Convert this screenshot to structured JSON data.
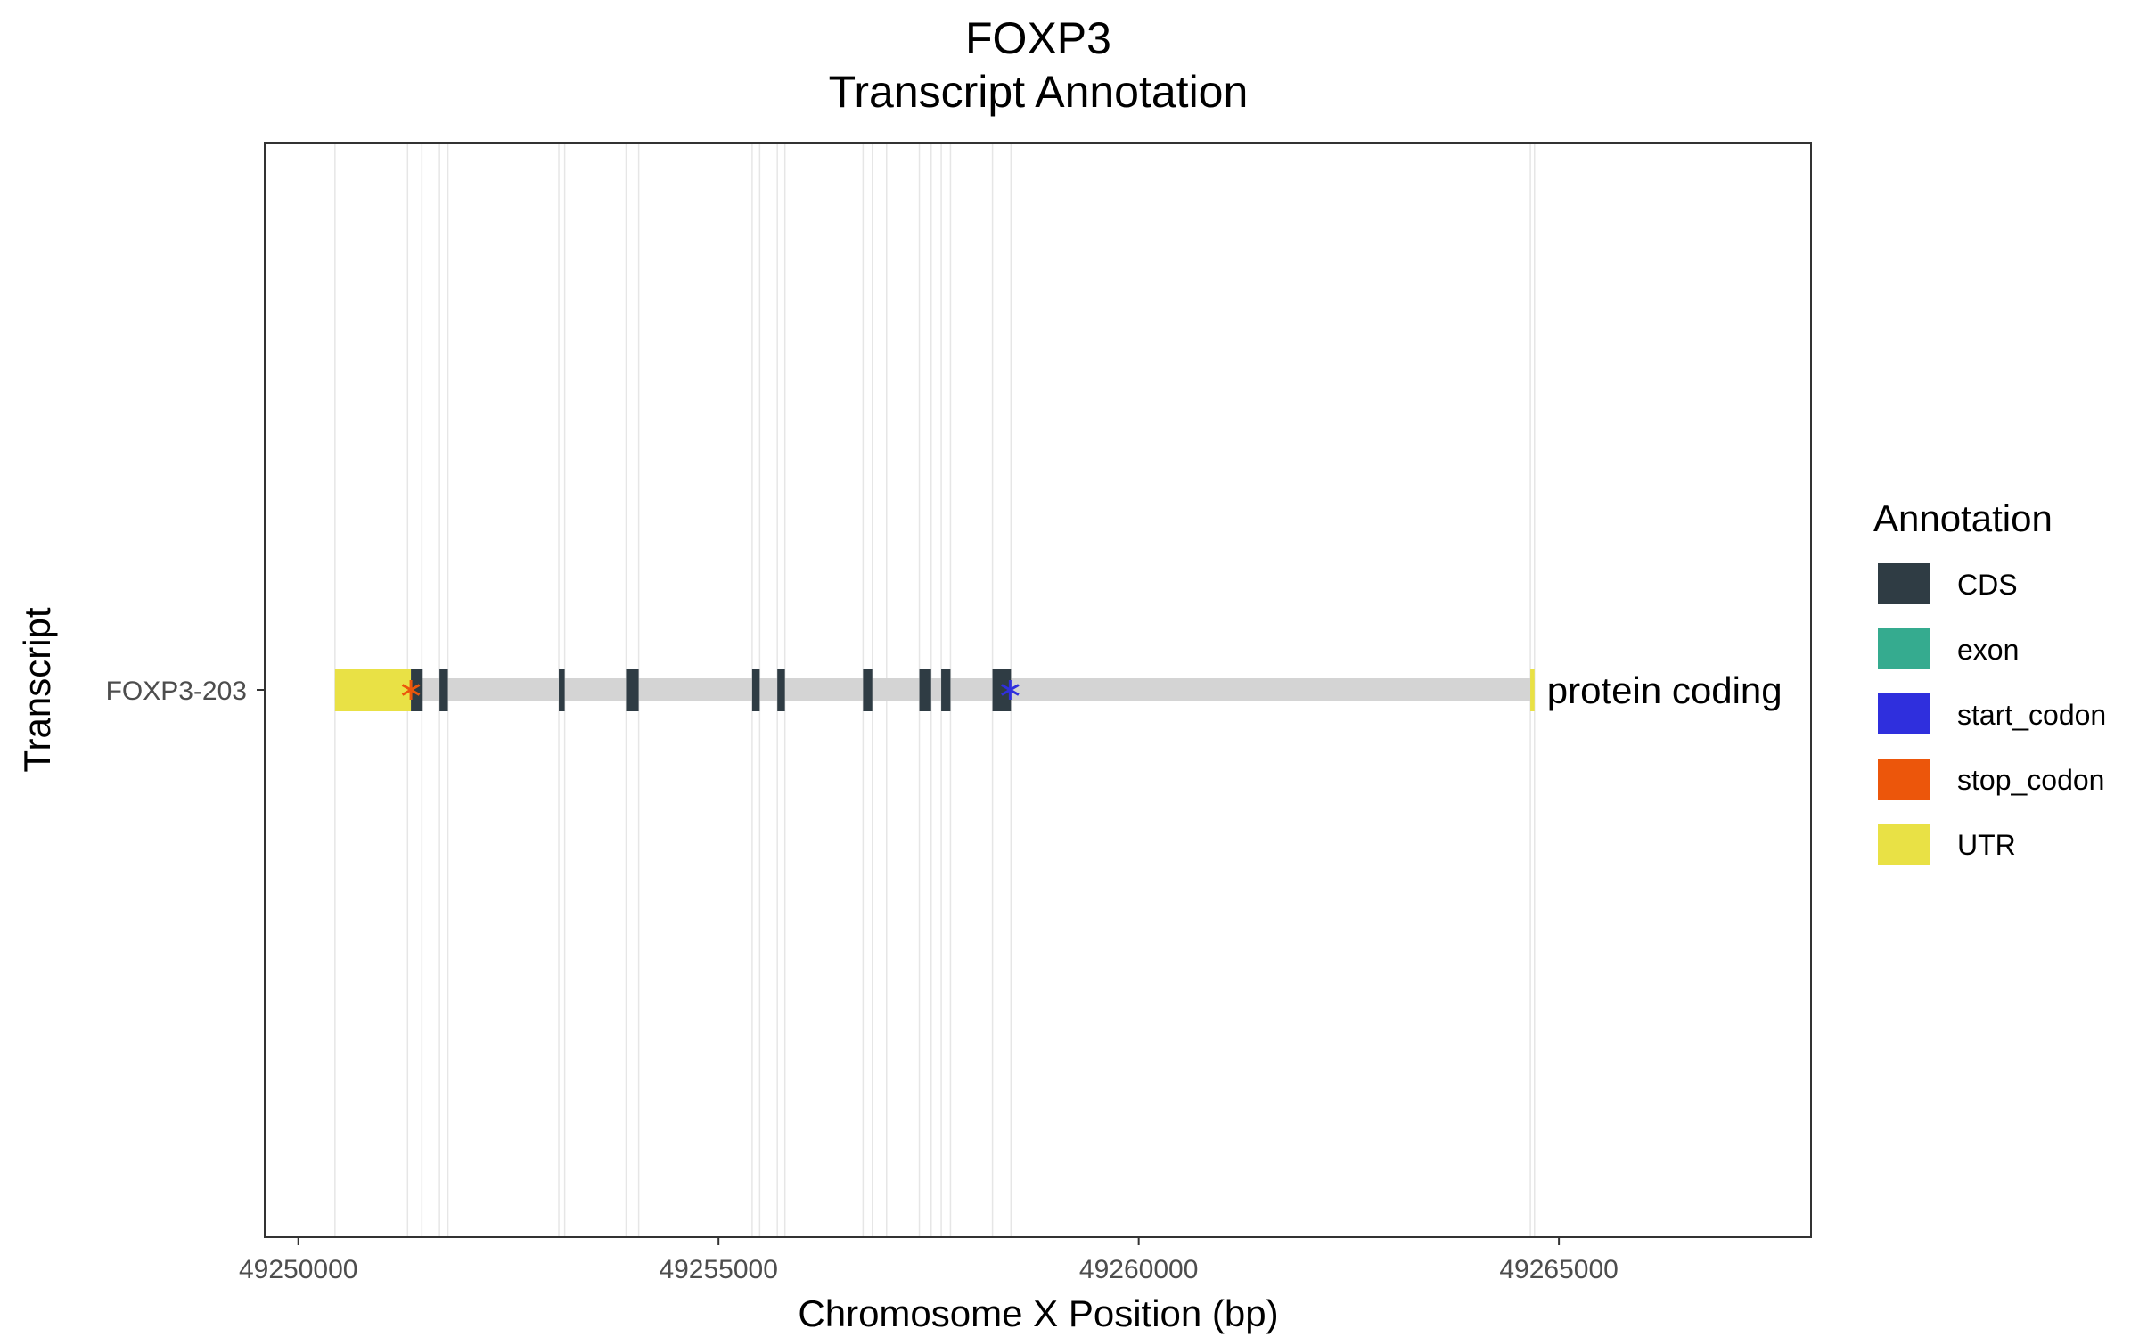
{
  "chart_data": {
    "type": "gene_track",
    "title": "FOXP3",
    "subtitle": "Transcript Annotation",
    "xlabel": "Chromosome X Position (bp)",
    "ylabel": "Transcript",
    "xlim": [
      49249600,
      49268000
    ],
    "x_ticks": [
      49250000,
      49255000,
      49260000,
      49265000
    ],
    "x_tick_labels": [
      "49250000",
      "49255000",
      "49260000",
      "49265000"
    ],
    "grid": "vertical lines at feature boundaries",
    "transcripts": [
      {
        "name": "FOXP3-203",
        "biotype_label": "protein coding",
        "start": 49250436,
        "end": 49264710,
        "features": [
          {
            "type": "UTR",
            "start": 49250436,
            "end": 49251340
          },
          {
            "type": "CDS",
            "start": 49251340,
            "end": 49251480
          },
          {
            "type": "CDS",
            "start": 49251680,
            "end": 49251780
          },
          {
            "type": "CDS",
            "start": 49253100,
            "end": 49253170
          },
          {
            "type": "CDS",
            "start": 49253900,
            "end": 49254050
          },
          {
            "type": "CDS",
            "start": 49255400,
            "end": 49255490
          },
          {
            "type": "CDS",
            "start": 49255700,
            "end": 49255790
          },
          {
            "type": "CDS",
            "start": 49256720,
            "end": 49256830
          },
          {
            "type": "CDS",
            "start": 49257390,
            "end": 49257530
          },
          {
            "type": "CDS",
            "start": 49257650,
            "end": 49257760
          },
          {
            "type": "CDS",
            "start": 49258260,
            "end": 49258480
          },
          {
            "type": "UTR",
            "start": 49264660,
            "end": 49264710
          }
        ],
        "codons": [
          {
            "type": "stop_codon",
            "position": 49251340
          },
          {
            "type": "start_codon",
            "position": 49258470
          }
        ],
        "grid_lines": [
          49250436,
          49251300,
          49251470,
          49251680,
          49251780,
          49253100,
          49253170,
          49253900,
          49254050,
          49255400,
          49255490,
          49255700,
          49255790,
          49256720,
          49256830,
          49257000,
          49257390,
          49257530,
          49257650,
          49257760,
          49258260,
          49258480,
          49264660,
          49264710
        ]
      }
    ],
    "legend": {
      "title": "Annotation",
      "placement": "right",
      "entries": [
        {
          "label": "CDS",
          "color": "#2f3c44"
        },
        {
          "label": "exon",
          "color": "#35ab8f"
        },
        {
          "label": "start_codon",
          "color": "#2f2fdd"
        },
        {
          "label": "stop_codon",
          "color": "#ec560b"
        },
        {
          "label": "UTR",
          "color": "#e9e145"
        }
      ]
    },
    "intron_color": "#d4d4d4"
  }
}
